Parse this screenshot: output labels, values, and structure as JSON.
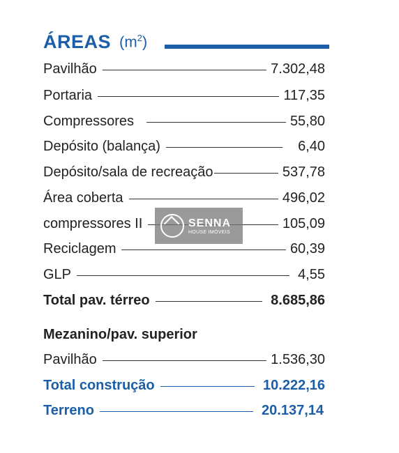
{
  "header": {
    "title": "ÁREAS",
    "unit": "(m",
    "unit_sup": "2",
    "unit_close": ")"
  },
  "rows": [
    {
      "label": "Pavilhão",
      "value": "7.302,48"
    },
    {
      "label": "Portaria",
      "value": "117,35"
    },
    {
      "label": "Compressores",
      "value": "55,80"
    },
    {
      "label": "Depósito (balança)",
      "value": "6,40"
    },
    {
      "label": "Depósito/sala de recreação",
      "value": "537,78"
    },
    {
      "label": "Área coberta",
      "value": "496,02"
    },
    {
      "label": "compressores II",
      "value": "105,09"
    },
    {
      "label": "Reciclagem",
      "value": "60,39"
    },
    {
      "label": "GLP",
      "value": "4,55"
    }
  ],
  "total_terreo": {
    "label": "Total pav. térreo",
    "value": "8.685,86"
  },
  "mezanino": {
    "heading": "Mezanino/pav. superior",
    "rows": [
      {
        "label": "Pavilhão",
        "value": "1.536,30"
      }
    ]
  },
  "total_construcao": {
    "label": "Total construção",
    "value": "10.222,16"
  },
  "terreno": {
    "label": "Terreno",
    "value": "20.137,14"
  },
  "watermark": {
    "brand": "SENNA",
    "sub": "HOUSE IMÓVEIS"
  },
  "colors": {
    "accent": "#1c5fa8",
    "text": "#222222"
  }
}
